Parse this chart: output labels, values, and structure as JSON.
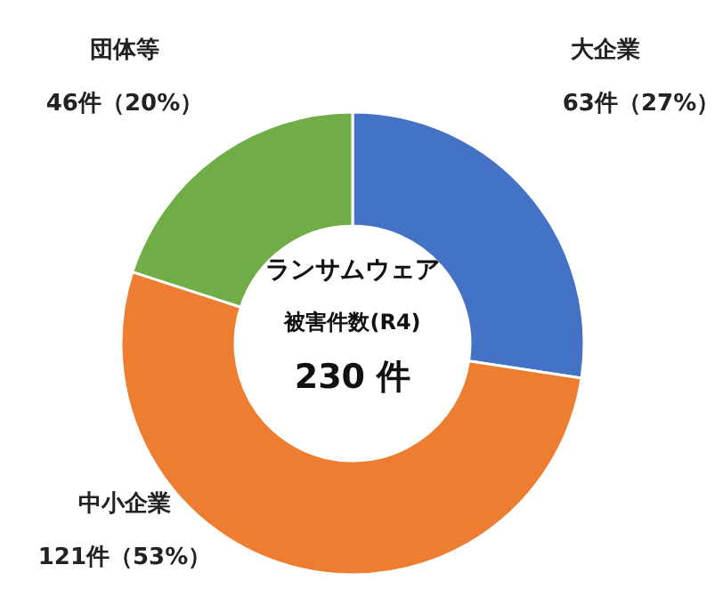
{
  "chart_data": {
    "type": "donut",
    "categories": [
      "大企業",
      "中小企業",
      "団体等"
    ],
    "values": [
      63,
      121,
      46
    ],
    "value_labels": [
      "63件（27%）",
      "121件（53%）",
      "46件（20%）"
    ],
    "colors": [
      "#4472c4",
      "#ed7d31",
      "#70ad47"
    ],
    "annotations": [
      "ランサムウェア",
      "被害件数(R4)",
      "230 件"
    ]
  }
}
